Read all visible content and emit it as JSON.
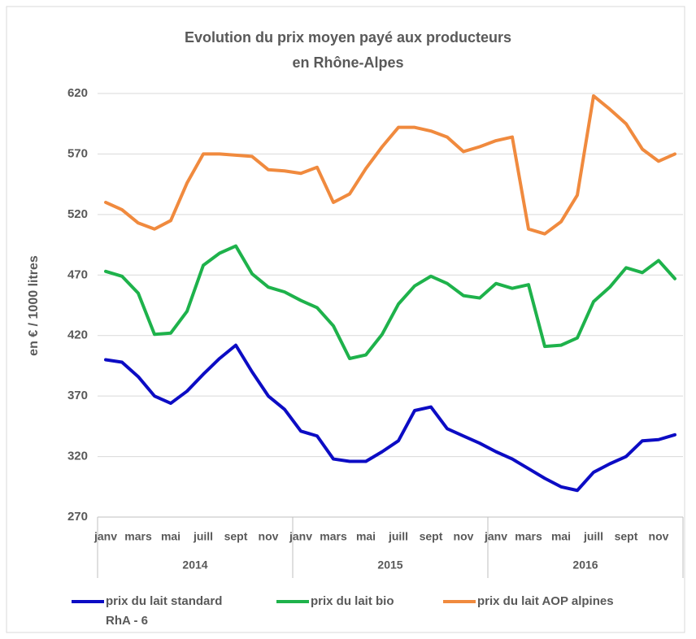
{
  "chart_data": {
    "type": "line",
    "title": [
      "Evolution du prix moyen payé aux producteurs",
      "en Rhône-Alpes"
    ],
    "y_label": "en € / 1000 litres",
    "categories": [
      "janv",
      null,
      "mars",
      null,
      "mai",
      null,
      "juill",
      null,
      "sept",
      null,
      "nov",
      null,
      "janv",
      null,
      "mars",
      null,
      "mai",
      null,
      "juill",
      null,
      "sept",
      null,
      "nov",
      null,
      "janv",
      null,
      "mars",
      null,
      "mai",
      null,
      "juill",
      null,
      "sept",
      null,
      "nov",
      null
    ],
    "year_groups": [
      "2014",
      "2015",
      "2016"
    ],
    "series": [
      {
        "name": "prix du lait standard RhA - 6",
        "color": "#0c0cc4",
        "values": [
          400,
          398,
          386,
          370,
          364,
          374,
          388,
          401,
          412,
          390,
          370,
          359,
          341,
          337,
          318,
          316,
          316,
          324,
          333,
          358,
          361,
          343,
          337,
          331,
          324,
          318,
          310,
          302,
          295,
          292,
          307,
          314,
          320,
          333,
          334,
          338
        ]
      },
      {
        "name": "prix du lait bio",
        "color": "#1eb24b",
        "values": [
          473,
          469,
          455,
          421,
          422,
          440,
          478,
          488,
          494,
          471,
          460,
          456,
          449,
          443,
          428,
          401,
          404,
          421,
          446,
          461,
          469,
          463,
          453,
          451,
          463,
          459,
          462,
          411,
          412,
          418,
          448,
          460,
          476,
          472,
          482,
          467
        ]
      },
      {
        "name": "prix du lait AOP alpines",
        "color": "#f08a3e",
        "values": [
          530,
          524,
          513,
          508,
          515,
          546,
          570,
          570,
          569,
          568,
          557,
          556,
          554,
          559,
          530,
          537,
          558,
          576,
          592,
          592,
          589,
          584,
          572,
          576,
          581,
          584,
          508,
          504,
          514,
          536,
          618,
          607,
          595,
          574,
          564,
          570
        ]
      }
    ],
    "ylim": [
      270,
      620
    ],
    "yticks": [
      270,
      320,
      370,
      420,
      470,
      520,
      570,
      620
    ],
    "grid": true
  }
}
